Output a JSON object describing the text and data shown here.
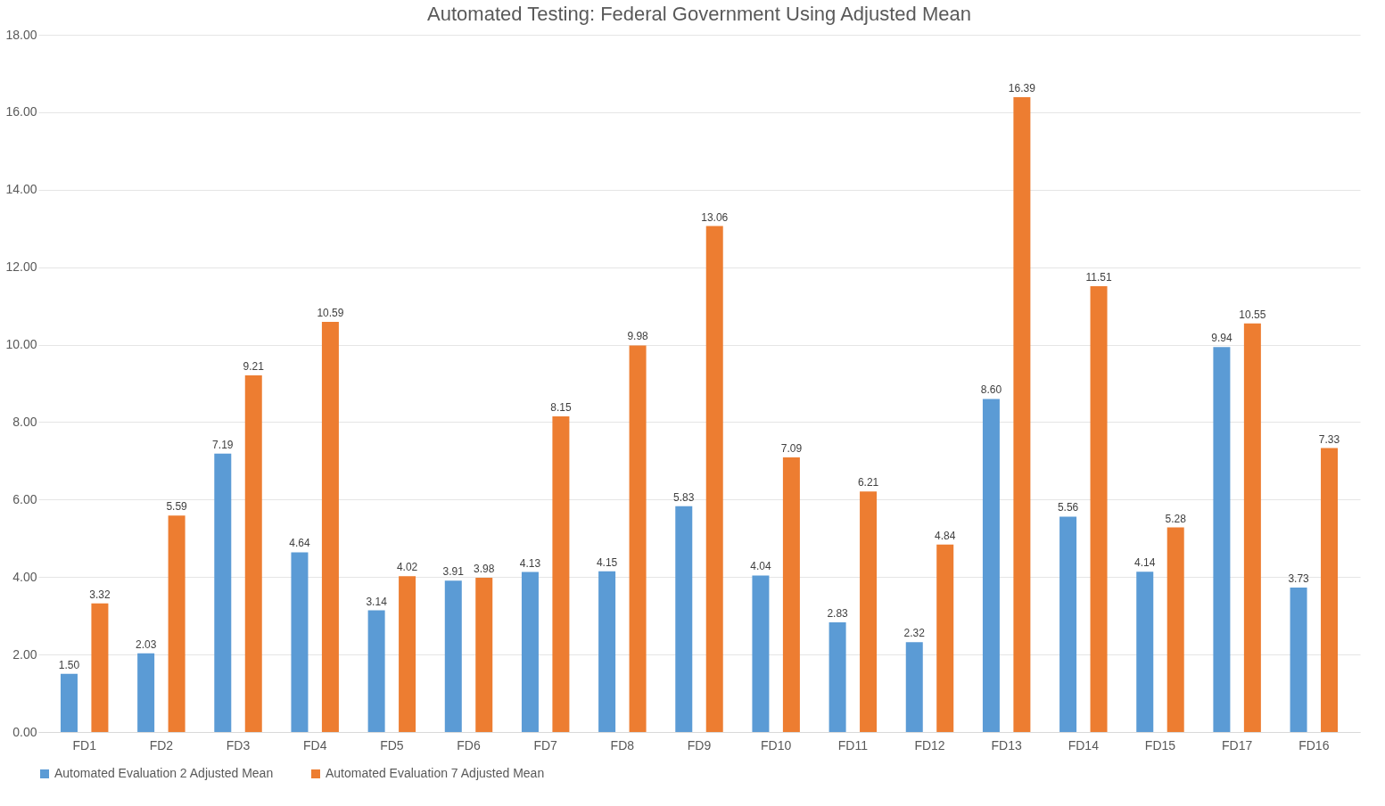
{
  "chart_data": {
    "type": "bar",
    "title": "Automated Testing: Federal Government Using Adjusted Mean",
    "categories": [
      "FD1",
      "FD2",
      "FD3",
      "FD4",
      "FD5",
      "FD6",
      "FD7",
      "FD8",
      "FD9",
      "FD10",
      "FD11",
      "FD12",
      "FD13",
      "FD14",
      "FD15",
      "FD17",
      "FD16"
    ],
    "series": [
      {
        "name": "Automated Evaluation 2 Adjusted Mean",
        "color": "#5b9bd5",
        "values": [
          1.5,
          2.03,
          7.19,
          4.64,
          3.14,
          3.91,
          4.13,
          4.15,
          5.83,
          4.04,
          2.83,
          2.32,
          8.6,
          5.56,
          4.14,
          9.94,
          3.73
        ],
        "value_labels": [
          "1.50",
          "2.03",
          "7.19",
          "4.64",
          "3.14",
          "3.91",
          "4.13",
          "4.15",
          "5.83",
          "4.04",
          "2.83",
          "2.32",
          "8.60",
          "5.56",
          "4.14",
          "9.94",
          "3.73"
        ]
      },
      {
        "name": "Automated Evaluation 7 Adjusted Mean",
        "color": "#ed7d31",
        "values": [
          3.32,
          5.59,
          9.21,
          10.59,
          4.02,
          3.98,
          8.15,
          9.98,
          13.06,
          7.09,
          6.21,
          4.84,
          16.39,
          11.51,
          5.28,
          10.55,
          7.33
        ],
        "value_labels": [
          "3.32",
          "5.59",
          "9.21",
          "10.59",
          "4.02",
          "3.98",
          "8.15",
          "9.98",
          "13.06",
          "7.09",
          "6.21",
          "4.84",
          "16.39",
          "11.51",
          "5.28",
          "10.55",
          "7.33"
        ]
      }
    ],
    "ylim": [
      0,
      18
    ],
    "yticks": [
      {
        "value": 0,
        "label": "0.00"
      },
      {
        "value": 2,
        "label": "2.00"
      },
      {
        "value": 4,
        "label": "4.00"
      },
      {
        "value": 6,
        "label": "6.00"
      },
      {
        "value": 8,
        "label": "8.00"
      },
      {
        "value": 10,
        "label": "10.00"
      },
      {
        "value": 12,
        "label": "12.00"
      },
      {
        "value": 14,
        "label": "14.00"
      },
      {
        "value": 16,
        "label": "16.00"
      },
      {
        "value": 18,
        "label": "18.00"
      }
    ],
    "grid": "y",
    "legend": "bottom"
  }
}
